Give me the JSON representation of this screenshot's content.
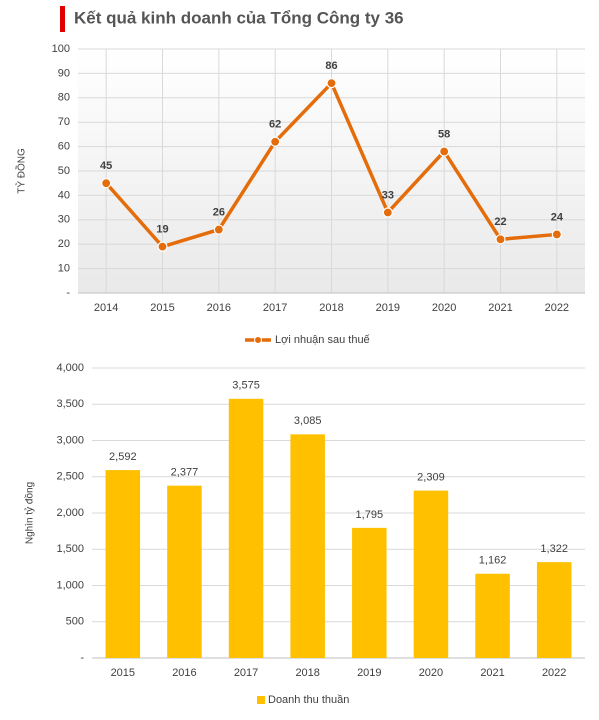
{
  "title": "Kết quả kinh doanh của Tổng Công ty 36",
  "chart_data": [
    {
      "type": "line",
      "y_label": "TỶ ĐỒNG",
      "categories": [
        "2014",
        "2015",
        "2016",
        "2017",
        "2018",
        "2019",
        "2020",
        "2021",
        "2022"
      ],
      "series": [
        {
          "name": "Lợi nhuận sau thuế",
          "color": "#e46c0a",
          "values": [
            45,
            19,
            26,
            62,
            86,
            33,
            58,
            22,
            24
          ]
        }
      ],
      "ylim": [
        0,
        100
      ],
      "yticks": [
        {
          "value": 0,
          "label": "-"
        },
        10,
        20,
        30,
        40,
        50,
        60,
        70,
        80,
        90,
        100
      ],
      "grid": true,
      "legend": "bottom"
    },
    {
      "type": "bar",
      "y_label": "Nghìn tỷ đồng",
      "categories": [
        "2015",
        "2016",
        "2017",
        "2018",
        "2019",
        "2020",
        "2021",
        "2022"
      ],
      "series": [
        {
          "name": "Doanh thu thuần",
          "color": "#ffc000",
          "values": [
            2592,
            2377,
            3575,
            3085,
            1795,
            2309,
            1162,
            1322
          ],
          "value_labels": [
            "2,592",
            "2,377",
            "3,575",
            "3,085",
            "1,795",
            "2,309",
            "1,162",
            "1,322"
          ]
        }
      ],
      "ylim": [
        0,
        4000
      ],
      "yticks": [
        {
          "value": 0,
          "label": "-"
        },
        500,
        {
          "value": 1000,
          "label": "1,000"
        },
        {
          "value": 1500,
          "label": "1,500"
        },
        {
          "value": 2000,
          "label": "2,000"
        },
        {
          "value": 2500,
          "label": "2,500"
        },
        {
          "value": 3000,
          "label": "3,000"
        },
        {
          "value": 3500,
          "label": "3,500"
        },
        {
          "value": 4000,
          "label": "4,000"
        }
      ],
      "grid": true,
      "legend": "bottom"
    }
  ]
}
